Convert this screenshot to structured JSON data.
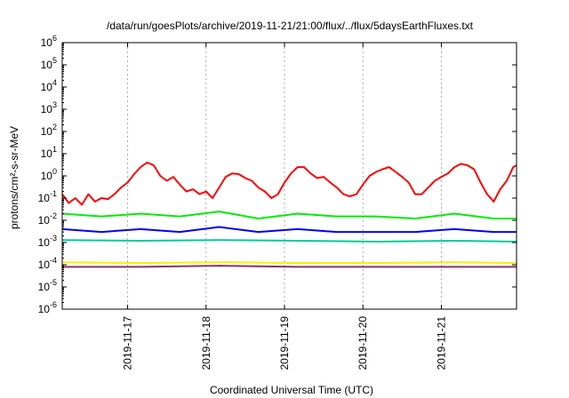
{
  "chart_data": {
    "type": "line",
    "title": "/data/run/goesPlots/archive/2019-11-21/21:00/flux/../flux/5daysEarthFluxes.txt",
    "xlabel": "Coordinated Universal Time (UTC)",
    "ylabel": "protons/cm²-s-sr-MeV",
    "yscale": "log",
    "ylim": [
      1e-06,
      1000000.0
    ],
    "ytick_exponents": [
      -6,
      -5,
      -4,
      -3,
      -2,
      -1,
      0,
      1,
      2,
      3,
      4,
      5,
      6
    ],
    "xlim": [
      "2019-11-16T04:00",
      "2019-11-21T23:00"
    ],
    "x_ticks": [
      "2019-11-17",
      "2019-11-18",
      "2019-11-19",
      "2019-11-20",
      "2019-11-21"
    ],
    "grid": true,
    "series": [
      {
        "color": "#ff0000",
        "x": [
          "2019-11-16T04:00",
          "2019-11-16T06:00",
          "2019-11-16T08:00",
          "2019-11-16T10:00",
          "2019-11-16T12:00",
          "2019-11-16T14:00",
          "2019-11-16T16:00",
          "2019-11-16T18:00",
          "2019-11-16T20:00",
          "2019-11-16T22:00",
          "2019-11-17T00:00",
          "2019-11-17T02:00",
          "2019-11-17T04:00",
          "2019-11-17T06:00",
          "2019-11-17T08:00",
          "2019-11-17T10:00",
          "2019-11-17T12:00",
          "2019-11-17T14:00",
          "2019-11-17T16:00",
          "2019-11-17T18:00",
          "2019-11-17T20:00",
          "2019-11-17T22:00",
          "2019-11-18T00:00",
          "2019-11-18T02:00",
          "2019-11-18T04:00",
          "2019-11-18T06:00",
          "2019-11-18T08:00",
          "2019-11-18T10:00",
          "2019-11-18T12:00",
          "2019-11-18T14:00",
          "2019-11-18T16:00",
          "2019-11-18T18:00",
          "2019-11-18T20:00",
          "2019-11-18T22:00",
          "2019-11-19T00:00",
          "2019-11-19T02:00",
          "2019-11-19T04:00",
          "2019-11-19T06:00",
          "2019-11-19T08:00",
          "2019-11-19T10:00",
          "2019-11-19T12:00",
          "2019-11-19T14:00",
          "2019-11-19T16:00",
          "2019-11-19T18:00",
          "2019-11-19T20:00",
          "2019-11-19T22:00",
          "2019-11-20T00:00",
          "2019-11-20T02:00",
          "2019-11-20T04:00",
          "2019-11-20T06:00",
          "2019-11-20T08:00",
          "2019-11-20T10:00",
          "2019-11-20T12:00",
          "2019-11-20T14:00",
          "2019-11-20T16:00",
          "2019-11-20T18:00",
          "2019-11-20T20:00",
          "2019-11-20T22:00",
          "2019-11-21T00:00",
          "2019-11-21T02:00",
          "2019-11-21T04:00",
          "2019-11-21T06:00",
          "2019-11-21T08:00",
          "2019-11-21T10:00",
          "2019-11-21T12:00",
          "2019-11-21T14:00",
          "2019-11-21T16:00",
          "2019-11-21T18:00",
          "2019-11-21T20:00",
          "2019-11-21T22:00",
          "2019-11-21T23:00"
        ],
        "y": [
          0.15,
          0.06,
          0.1,
          0.05,
          0.15,
          0.07,
          0.1,
          0.09,
          0.15,
          0.3,
          0.5,
          1.2,
          2.5,
          4,
          3,
          1,
          0.6,
          0.9,
          0.4,
          0.2,
          0.25,
          0.15,
          0.2,
          0.1,
          0.3,
          0.9,
          1.3,
          1.2,
          0.8,
          0.6,
          0.3,
          0.2,
          0.1,
          0.15,
          0.5,
          1.3,
          2.5,
          2.5,
          1.3,
          0.8,
          0.9,
          0.5,
          0.3,
          0.15,
          0.12,
          0.15,
          0.4,
          1,
          1.5,
          2,
          2.5,
          1.5,
          0.9,
          0.5,
          0.15,
          0.15,
          0.3,
          0.6,
          0.9,
          1.3,
          2.5,
          3.5,
          3,
          2,
          0.5,
          0.15,
          0.07,
          0.25,
          0.6,
          2.5,
          3
        ]
      },
      {
        "color": "#00ee00",
        "x": [
          "2019-11-16T04:00",
          "2019-11-16T16:00",
          "2019-11-17T04:00",
          "2019-11-17T16:00",
          "2019-11-18T04:00",
          "2019-11-18T16:00",
          "2019-11-19T04:00",
          "2019-11-19T16:00",
          "2019-11-20T04:00",
          "2019-11-20T16:00",
          "2019-11-21T04:00",
          "2019-11-21T16:00",
          "2019-11-21T23:00"
        ],
        "y": [
          0.02,
          0.015,
          0.02,
          0.015,
          0.025,
          0.012,
          0.02,
          0.015,
          0.015,
          0.012,
          0.02,
          0.012,
          0.012
        ]
      },
      {
        "color": "#0000ff",
        "x": [
          "2019-11-16T04:00",
          "2019-11-16T16:00",
          "2019-11-17T04:00",
          "2019-11-17T16:00",
          "2019-11-18T04:00",
          "2019-11-18T16:00",
          "2019-11-19T04:00",
          "2019-11-19T16:00",
          "2019-11-20T04:00",
          "2019-11-20T16:00",
          "2019-11-21T04:00",
          "2019-11-21T16:00",
          "2019-11-21T23:00"
        ],
        "y": [
          0.004,
          0.003,
          0.004,
          0.003,
          0.005,
          0.003,
          0.004,
          0.003,
          0.003,
          0.003,
          0.004,
          0.003,
          0.003
        ]
      },
      {
        "color": "#00cc99",
        "x": [
          "2019-11-16T04:00",
          "2019-11-17T04:00",
          "2019-11-18T04:00",
          "2019-11-19T04:00",
          "2019-11-20T04:00",
          "2019-11-21T04:00",
          "2019-11-21T23:00"
        ],
        "y": [
          0.0013,
          0.0012,
          0.0013,
          0.0012,
          0.0011,
          0.0012,
          0.0011
        ]
      },
      {
        "color": "#ffee00",
        "x": [
          "2019-11-16T04:00",
          "2019-11-17T04:00",
          "2019-11-18T04:00",
          "2019-11-19T04:00",
          "2019-11-20T04:00",
          "2019-11-21T04:00",
          "2019-11-21T23:00"
        ],
        "y": [
          0.00013,
          0.00012,
          0.00013,
          0.00012,
          0.00012,
          0.00013,
          0.00012
        ]
      },
      {
        "color": "#883366",
        "x": [
          "2019-11-16T04:00",
          "2019-11-17T04:00",
          "2019-11-18T04:00",
          "2019-11-19T04:00",
          "2019-11-20T04:00",
          "2019-11-21T04:00",
          "2019-11-21T23:00"
        ],
        "y": [
          8e-05,
          8e-05,
          9e-05,
          8e-05,
          8e-05,
          8e-05,
          8e-05
        ]
      }
    ]
  }
}
